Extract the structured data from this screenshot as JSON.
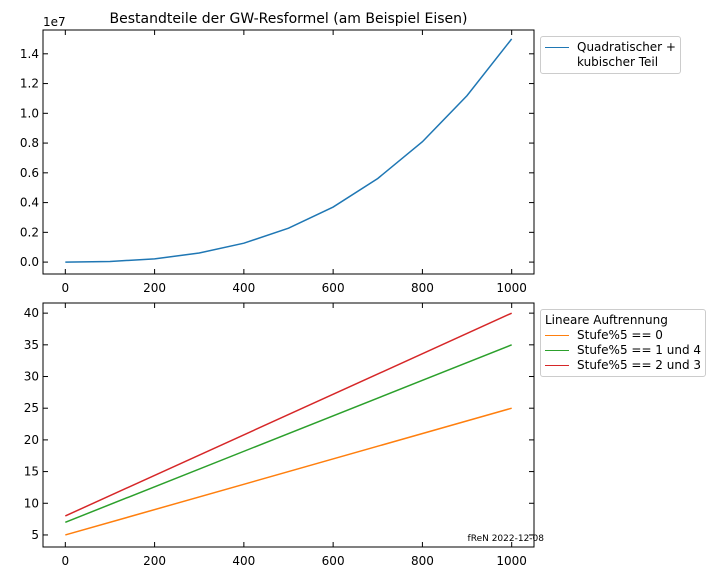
{
  "chart_data": [
    {
      "type": "line",
      "title": "Bestandteile der GW-Resformel (am Beispiel Eisen)",
      "y_offset_label": "1e7",
      "x": [
        0,
        100,
        200,
        300,
        400,
        500,
        600,
        700,
        800,
        900,
        1000
      ],
      "series": [
        {
          "name": "Quadratischer +\nkubischer Teil",
          "color": "#1f77b4",
          "values": [
            0,
            0.0044,
            0.022,
            0.061,
            0.127,
            0.228,
            0.37,
            0.562,
            0.809,
            1.119,
            1.5
          ]
        }
      ],
      "xlim": [
        -50,
        1050
      ],
      "ylim": [
        -0.08,
        1.56
      ],
      "xticks": [
        0,
        200,
        400,
        600,
        800,
        1000
      ],
      "yticks": [
        {
          "value": 0,
          "label": "0.0"
        },
        0.2,
        0.4,
        0.6,
        0.8,
        {
          "value": 1,
          "label": "1.0"
        },
        1.2,
        1.4
      ]
    },
    {
      "type": "line",
      "legend_title": "Lineare Auftrennung",
      "annotation": "fReN 2022-12-08",
      "x": [
        0,
        1000
      ],
      "series": [
        {
          "name": "Stufe%5 == 0",
          "color": "#ff7f0e",
          "values": [
            5,
            25
          ]
        },
        {
          "name": "Stufe%5 == 1 und 4",
          "color": "#2ca02c",
          "values": [
            7,
            35
          ]
        },
        {
          "name": "Stufe%5 == 2 und 3",
          "color": "#d62728",
          "values": [
            8,
            40
          ]
        }
      ],
      "xlim": [
        -50,
        1050
      ],
      "ylim": [
        3.1,
        41.6
      ],
      "xticks": [
        0,
        200,
        400,
        600,
        800,
        1000
      ],
      "yticks": [
        5,
        10,
        15,
        20,
        25,
        30,
        35,
        40
      ]
    }
  ]
}
